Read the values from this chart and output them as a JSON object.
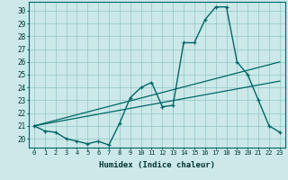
{
  "xlabel": "Humidex (Indice chaleur)",
  "background_color": "#cce8e8",
  "grid_color": "#99cccc",
  "line_color": "#006666",
  "xlim": [
    -0.5,
    23.5
  ],
  "ylim": [
    19.3,
    30.7
  ],
  "yticks": [
    20,
    21,
    22,
    23,
    24,
    25,
    26,
    27,
    28,
    29,
    30
  ],
  "xticks": [
    0,
    1,
    2,
    3,
    4,
    5,
    6,
    7,
    8,
    9,
    10,
    11,
    12,
    13,
    14,
    15,
    16,
    17,
    18,
    19,
    20,
    21,
    22,
    23
  ],
  "curve1_x": [
    0,
    1,
    2,
    3,
    4,
    5,
    6,
    7,
    8,
    9,
    10,
    11,
    12,
    13,
    14,
    15,
    16,
    17,
    18,
    19,
    20,
    21,
    22,
    23
  ],
  "curve1_y": [
    21.0,
    20.6,
    20.5,
    20.0,
    19.8,
    19.6,
    19.8,
    19.5,
    21.2,
    23.2,
    24.0,
    24.4,
    22.5,
    22.6,
    27.5,
    27.5,
    29.3,
    30.3,
    30.3,
    26.0,
    25.0,
    23.0,
    21.0,
    20.5
  ],
  "curve2_x": [
    0,
    23
  ],
  "curve2_y": [
    21.0,
    26.0
  ],
  "curve3_x": [
    0,
    23
  ],
  "curve3_y": [
    21.0,
    24.5
  ]
}
